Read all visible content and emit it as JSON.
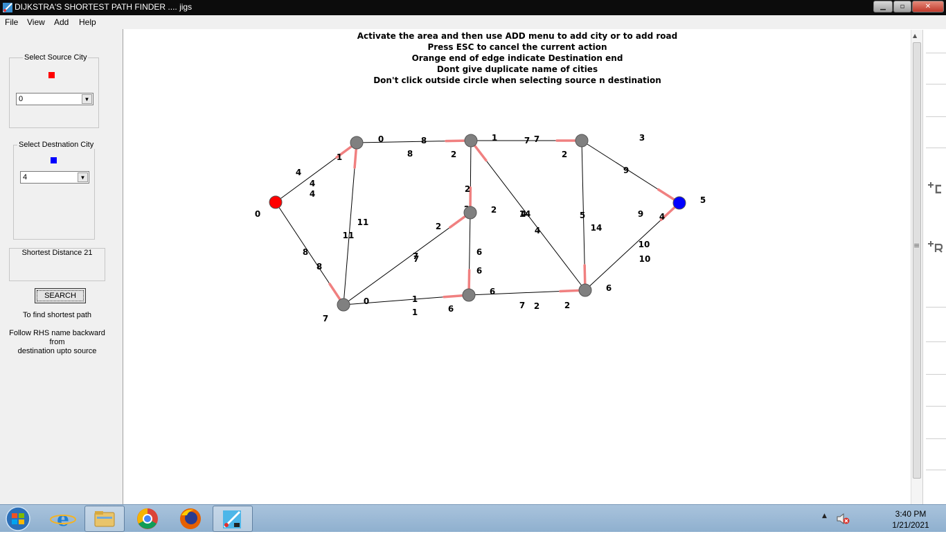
{
  "window": {
    "title": "DIJKSTRA'S SHORTEST PATH FINDER .... jigs",
    "buttons": {
      "minimize": "▁",
      "maximize": "▫",
      "close": "✕"
    }
  },
  "menu": {
    "items": [
      "File",
      "View",
      "Add",
      "Help"
    ]
  },
  "left_panel": {
    "source_group_label": "Select Source City",
    "source_value": "0",
    "source_marker_color": "#ff0000",
    "dest_group_label": "Select Destnation City",
    "dest_value": "4",
    "dest_marker_color": "#0000ff",
    "distance_label": "Shortest Distance 21",
    "search_label": "SEARCH",
    "hint_1": "To find shortest path",
    "hint_2_line1": "Follow RHS name backward",
    "hint_2_line2": "from",
    "hint_2_line3": "destination upto source"
  },
  "instructions": [
    "Activate the area and then use ADD menu to add city or to add road",
    "Press ESC to cancel the current action",
    "Orange end of edge indicate Destination end",
    "Dont give duplicate name of cities",
    "Don't click outside circle when selecting source n destination"
  ],
  "graph": {
    "colors": {
      "source": "#ff0000",
      "destination": "#0000ff",
      "node": "#808080",
      "edge": "#000000",
      "edge_end": "#f08080"
    },
    "nodes": [
      {
        "id": "0",
        "name": "0",
        "label": "0",
        "role": "source"
      },
      {
        "id": "1",
        "name": "1",
        "label": "4",
        "role": "node"
      },
      {
        "id": "2",
        "name": "2",
        "label": "2",
        "role": "node"
      },
      {
        "id": "3",
        "name": "3",
        "label": "2",
        "role": "node"
      },
      {
        "id": "4",
        "name": "4",
        "label": "5",
        "role": "destination"
      },
      {
        "id": "5",
        "name": "5",
        "label": "6",
        "role": "node"
      },
      {
        "id": "6",
        "name": "6",
        "label": "6",
        "role": "node"
      },
      {
        "id": "7",
        "name": "7",
        "label": "7",
        "role": "node"
      },
      {
        "id": "8",
        "name": "8",
        "label": "2",
        "role": "node"
      }
    ],
    "edges": [
      {
        "from": "0",
        "to": "1",
        "weight": "4"
      },
      {
        "from": "0",
        "to": "7",
        "weight": "8"
      },
      {
        "from": "1",
        "to": "2",
        "weight": "8"
      },
      {
        "from": "7",
        "to": "1",
        "weight": "11"
      },
      {
        "from": "2",
        "to": "3",
        "weight": "7"
      },
      {
        "from": "2",
        "to": "8",
        "weight": "2"
      },
      {
        "from": "5",
        "to": "2",
        "weight": "4"
      },
      {
        "from": "3",
        "to": "4",
        "weight": "9"
      },
      {
        "from": "3",
        "to": "5",
        "weight": "14"
      },
      {
        "from": "5",
        "to": "4",
        "weight": "10"
      },
      {
        "from": "7",
        "to": "8",
        "weight": "7"
      },
      {
        "from": "8",
        "to": "6",
        "weight": "6"
      },
      {
        "from": "7",
        "to": "6",
        "weight": "1"
      },
      {
        "from": "6",
        "to": "5",
        "weight": "2"
      }
    ],
    "extra_labels": [
      "1",
      "0",
      "8",
      "2",
      "1",
      "7",
      "3",
      "2",
      "9",
      "11",
      "8",
      "6",
      "7",
      "0",
      "1",
      "6",
      "7",
      "2",
      "5",
      "14",
      "4",
      "10",
      "4",
      "4"
    ]
  },
  "taskbar": {
    "items": [
      "start-orb",
      "internet-explorer",
      "file-explorer",
      "chrome",
      "firefox",
      "dijkstra-app"
    ],
    "time": "3:40 PM",
    "date": "1/21/2021"
  }
}
